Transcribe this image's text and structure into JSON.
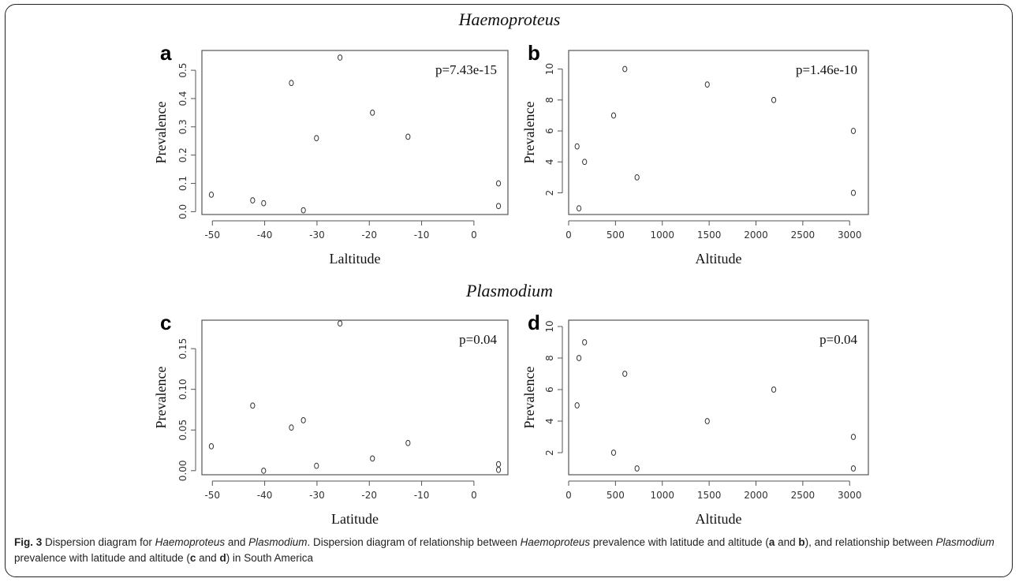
{
  "figure": {
    "section_titles": [
      "Haemoproteus",
      "Plasmodium"
    ],
    "caption": {
      "label": "Fig. 3",
      "parts": [
        {
          "t": " Dispersion diagram for ",
          "s": "n"
        },
        {
          "t": "Haemoproteus",
          "s": "i"
        },
        {
          "t": " and ",
          "s": "n"
        },
        {
          "t": "Plasmodium",
          "s": "i"
        },
        {
          "t": ". Dispersion diagram of relationship between ",
          "s": "n"
        },
        {
          "t": "Haemoproteus",
          "s": "i"
        },
        {
          "t": " prevalence with latitude and altitude (",
          "s": "n"
        },
        {
          "t": "a",
          "s": "b"
        },
        {
          "t": " and ",
          "s": "n"
        },
        {
          "t": "b",
          "s": "b"
        },
        {
          "t": "), and relationship between ",
          "s": "n"
        },
        {
          "t": "Plasmodium",
          "s": "i"
        },
        {
          "t": " prevalence with latitude and altitude (",
          "s": "n"
        },
        {
          "t": "c",
          "s": "b"
        },
        {
          "t": " and ",
          "s": "n"
        },
        {
          "t": "d",
          "s": "b"
        },
        {
          "t": ") in South America",
          "s": "n"
        }
      ]
    }
  },
  "chart_data": [
    {
      "panel": "a",
      "type": "scatter",
      "xlabel": "Laltitude",
      "ylabel": "Prevalence",
      "annotation": "p=7.43e-15",
      "xlim": [
        -52,
        6.5
      ],
      "ylim": [
        -0.01,
        0.57
      ],
      "xticks": [
        -50,
        -40,
        -30,
        -20,
        -10,
        0
      ],
      "yticks": [
        0.0,
        0.1,
        0.2,
        0.3,
        0.4,
        0.5
      ],
      "ytick_labels": [
        "0.0",
        "0.1",
        "0.2",
        "0.3",
        "0.4",
        "0.5"
      ],
      "points": [
        {
          "x": -50.2,
          "y": 0.06
        },
        {
          "x": -42.3,
          "y": 0.04
        },
        {
          "x": -40.2,
          "y": 0.03
        },
        {
          "x": -34.9,
          "y": 0.455
        },
        {
          "x": -32.6,
          "y": 0.005
        },
        {
          "x": -30.1,
          "y": 0.26
        },
        {
          "x": -25.6,
          "y": 0.545
        },
        {
          "x": -19.4,
          "y": 0.35
        },
        {
          "x": -12.6,
          "y": 0.265
        },
        {
          "x": 4.7,
          "y": 0.1
        },
        {
          "x": 4.7,
          "y": 0.02
        }
      ]
    },
    {
      "panel": "b",
      "type": "scatter",
      "xlabel": "Altitude",
      "ylabel": "Prevalence",
      "annotation": "p=1.46e-10",
      "xlim": [
        0,
        3200
      ],
      "ylim": [
        0.6,
        11.2
      ],
      "xticks": [
        0,
        500,
        1000,
        1500,
        2000,
        2500,
        3000
      ],
      "yticks": [
        2,
        4,
        6,
        8,
        10
      ],
      "ytick_labels": [
        "2",
        "4",
        "6",
        "8",
        "10"
      ],
      "points": [
        {
          "x": 90,
          "y": 5
        },
        {
          "x": 110,
          "y": 1
        },
        {
          "x": 170,
          "y": 4
        },
        {
          "x": 480,
          "y": 7
        },
        {
          "x": 600,
          "y": 10
        },
        {
          "x": 730,
          "y": 3
        },
        {
          "x": 1480,
          "y": 9
        },
        {
          "x": 2190,
          "y": 8
        },
        {
          "x": 3040,
          "y": 6
        },
        {
          "x": 3040,
          "y": 2
        }
      ]
    },
    {
      "panel": "c",
      "type": "scatter",
      "xlabel": "Latitude",
      "ylabel": "Prevalence",
      "annotation": "p=0.04",
      "xlim": [
        -52,
        6.5
      ],
      "ylim": [
        -0.005,
        0.185
      ],
      "xticks": [
        -50,
        -40,
        -30,
        -20,
        -10,
        0
      ],
      "yticks": [
        0.0,
        0.05,
        0.1,
        0.15
      ],
      "ytick_labels": [
        "0.00",
        "0.05",
        "0.10",
        "0.15"
      ],
      "points": [
        {
          "x": -50.2,
          "y": 0.03
        },
        {
          "x": -42.3,
          "y": 0.08
        },
        {
          "x": -40.2,
          "y": 0.0
        },
        {
          "x": -34.9,
          "y": 0.053
        },
        {
          "x": -32.6,
          "y": 0.062
        },
        {
          "x": -30.1,
          "y": 0.006
        },
        {
          "x": -25.6,
          "y": 0.181
        },
        {
          "x": -19.4,
          "y": 0.015
        },
        {
          "x": -12.6,
          "y": 0.034
        },
        {
          "x": 4.7,
          "y": 0.008
        },
        {
          "x": 4.7,
          "y": 0.001
        }
      ]
    },
    {
      "panel": "d",
      "type": "scatter",
      "xlabel": "Altitude",
      "ylabel": "Prevalence",
      "annotation": "p=0.04",
      "xlim": [
        0,
        3200
      ],
      "ylim": [
        0.6,
        10.4
      ],
      "xticks": [
        0,
        500,
        1000,
        1500,
        2000,
        2500,
        3000
      ],
      "yticks": [
        2,
        4,
        6,
        8,
        10
      ],
      "ytick_labels": [
        "2",
        "4",
        "6",
        "8",
        "10"
      ],
      "points": [
        {
          "x": 90,
          "y": 5
        },
        {
          "x": 110,
          "y": 8
        },
        {
          "x": 170,
          "y": 9
        },
        {
          "x": 480,
          "y": 2
        },
        {
          "x": 600,
          "y": 7
        },
        {
          "x": 730,
          "y": 1
        },
        {
          "x": 1480,
          "y": 4
        },
        {
          "x": 2190,
          "y": 6
        },
        {
          "x": 3040,
          "y": 3
        },
        {
          "x": 3040,
          "y": 1
        }
      ]
    }
  ]
}
